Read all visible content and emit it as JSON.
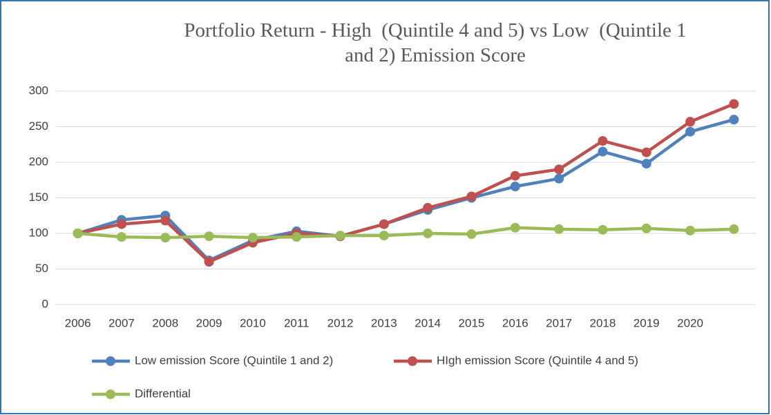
{
  "chart_data": {
    "type": "line",
    "title": "Portfolio Return - High  (Quintile 4 and 5) vs Low  (Quintile 1 and 2) Emission Score",
    "categories": [
      "2006",
      "2007",
      "2008",
      "2009",
      "2010",
      "2011",
      "2012",
      "2013",
      "2014",
      "2015",
      "2016",
      "2017",
      "2018",
      "2019",
      "2020",
      null
    ],
    "series": [
      {
        "name": "Low emission Score (Quintile 1 and 2)",
        "color": "#4f81bd",
        "values": [
          100,
          119,
          125,
          62,
          90,
          103,
          96,
          113,
          133,
          150,
          166,
          177,
          215,
          198,
          243,
          260
        ]
      },
      {
        "name": "HIgh emission Score (Quintile 4 and 5)",
        "color": "#c0504d",
        "values": [
          100,
          113,
          118,
          60,
          87,
          100,
          96,
          113,
          136,
          152,
          181,
          190,
          230,
          214,
          257,
          282
        ]
      },
      {
        "name": "Differential",
        "color": "#9bbb59",
        "values": [
          100,
          95,
          94,
          96,
          94,
          95,
          97,
          97,
          100,
          99,
          108,
          106,
          105,
          107,
          104,
          106
        ]
      }
    ],
    "ylim": [
      0,
      300
    ],
    "yticks": [
      0,
      50,
      100,
      150,
      200,
      250,
      300
    ],
    "grid": true
  }
}
